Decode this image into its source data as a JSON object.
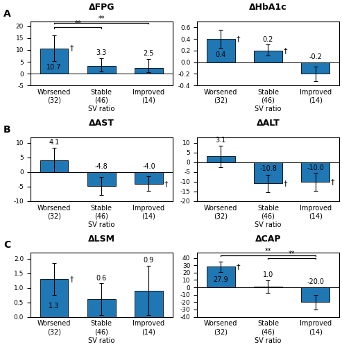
{
  "chart_data": [
    {
      "type": "bar",
      "panel_label": "A",
      "title": "ΔFPG",
      "xlabel": "SV ratio",
      "categories": [
        "Worsened\n(32)",
        "Stable\n(46)",
        "Improved\n(14)"
      ],
      "values": [
        10.7,
        3.3,
        2.5
      ],
      "errors_up": [
        5.5,
        3.2,
        3.8
      ],
      "errors_down": [
        5.5,
        2.5,
        2.0
      ],
      "ylim": [
        -5,
        22
      ],
      "yticks": [
        -5,
        0,
        5,
        10,
        15,
        20
      ],
      "data_labels": true,
      "annotations": [
        {
          "text": "†",
          "category": "Worsened\n(32)"
        }
      ],
      "significance": [
        {
          "from": "Worsened\n(32)",
          "to": "Stable\n(46)",
          "y": 19.5,
          "label": "**"
        },
        {
          "from": "Worsened\n(32)",
          "to": "Improved\n(14)",
          "y": 21.5,
          "label": "**"
        }
      ]
    },
    {
      "type": "bar",
      "title": "ΔHbA1c",
      "xlabel": "SV ratio",
      "categories": [
        "Worsened\n(32)",
        "Stable\n(46)",
        "Improved\n(14)"
      ],
      "values": [
        0.4,
        0.2,
        -0.2
      ],
      "errors_up": [
        0.15,
        0.1,
        0.13
      ],
      "errors_down": [
        0.15,
        0.08,
        0.13
      ],
      "ylim": [
        -0.4,
        0.7
      ],
      "yticks": [
        -0.4,
        -0.2,
        {
          "value": 0,
          "label": "0.0"
        },
        0.2,
        0.4,
        0.6
      ],
      "data_labels": true,
      "annotations": [
        {
          "text": "†",
          "category": "Worsened\n(32)"
        },
        {
          "text": "†",
          "category": "Stable\n(46)"
        }
      ]
    },
    {
      "type": "bar",
      "panel_label": "B",
      "title": "ΔAST",
      "xlabel": "SV ratio",
      "categories": [
        "Worsened\n(32)",
        "Stable\n(46)",
        "Improved\n(14)"
      ],
      "values": [
        4.1,
        -4.8,
        -4.0
      ],
      "errors_up": [
        4.2,
        3.0,
        2.5
      ],
      "errors_down": [
        4.2,
        3.0,
        2.5
      ],
      "ylim": [
        -10,
        12
      ],
      "yticks": [
        -10,
        -5,
        0,
        5,
        10
      ],
      "data_labels": true,
      "annotations": [
        {
          "text": "†",
          "category": "Improved\n(14)"
        }
      ]
    },
    {
      "type": "bar",
      "title": "ΔALT",
      "xlabel": "SV ratio",
      "categories": [
        "Worsened\n(32)",
        "Stable\n(46)",
        "Improved\n(14)"
      ],
      "values": [
        3.1,
        -10.8,
        -10.0
      ],
      "errors_up": [
        5.5,
        4.5,
        4.5
      ],
      "errors_down": [
        5.5,
        4.5,
        4.5
      ],
      "ylim": [
        -20,
        13
      ],
      "yticks": [
        -20,
        -15,
        -10,
        -5,
        0,
        5,
        10
      ],
      "data_labels": true,
      "annotations": [
        {
          "text": "†",
          "category": "Stable\n(46)"
        },
        {
          "text": "†",
          "category": "Improved\n(14)"
        }
      ]
    },
    {
      "type": "bar",
      "panel_label": "C",
      "title": "ΔLSM",
      "xlabel": "SV ratio",
      "categories": [
        "Worsened\n(32)",
        "Stable\n(46)",
        "Improved\n(14)"
      ],
      "values": [
        1.3,
        0.6,
        0.9
      ],
      "errors_up": [
        0.55,
        0.55,
        0.85
      ],
      "errors_down": [
        0.55,
        0.55,
        0.85
      ],
      "ylim": [
        0,
        2.2
      ],
      "yticks": [
        {
          "value": 0,
          "label": "0.0"
        },
        0.5,
        {
          "value": 1,
          "label": "1.0"
        },
        1.5,
        {
          "value": 2,
          "label": "2.0"
        }
      ],
      "data_labels": true,
      "annotations": [
        {
          "text": "†",
          "category": "Worsened\n(32)"
        }
      ]
    },
    {
      "type": "bar",
      "title": "ΔCAP",
      "xlabel": "SV ratio",
      "categories": [
        "Worsened\n(32)",
        "Stable\n(46)",
        "Improved\n(14)"
      ],
      "values": [
        27.9,
        1.0,
        -20.0
      ],
      "errors_up": [
        7.0,
        8.5,
        10.0
      ],
      "errors_down": [
        7.0,
        8.5,
        10.0
      ],
      "ylim": [
        -40,
        47
      ],
      "yticks": [
        -40,
        -30,
        -20,
        -10,
        0,
        10,
        20,
        30,
        40
      ],
      "data_labels": true,
      "annotations": [
        {
          "text": "†",
          "category": "Worsened\n(32)"
        }
      ],
      "significance": [
        {
          "from": "Worsened\n(32)",
          "to": "Improved\n(14)",
          "y": 43.5,
          "label": "**"
        },
        {
          "from": "Stable\n(46)",
          "to": "Improved\n(14)",
          "y": 40.0,
          "label": "**"
        }
      ]
    }
  ]
}
